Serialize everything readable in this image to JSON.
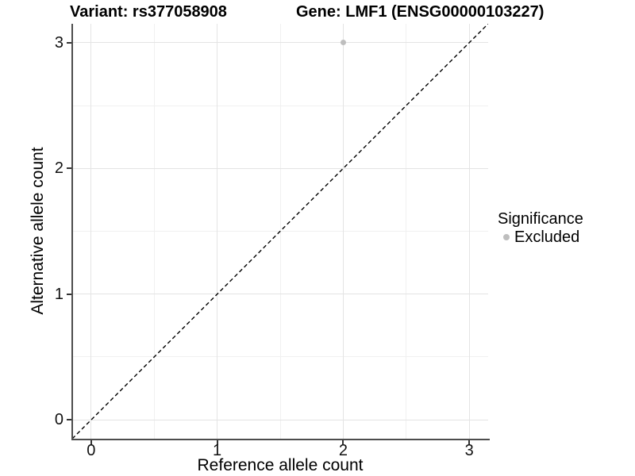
{
  "chart_data": {
    "type": "scatter",
    "titles": {
      "left": "Variant: rs377058908",
      "right": "Gene: LMF1 (ENSG00000103227)"
    },
    "xlabel": "Reference allele count",
    "ylabel": "Alternative allele count",
    "xlim": [
      -0.15,
      3.15
    ],
    "ylim": [
      -0.15,
      3.15
    ],
    "x_major_ticks": [
      0,
      1,
      2,
      3
    ],
    "y_major_ticks": [
      0,
      1,
      2,
      3
    ],
    "x_minor_ticks": [
      0.5,
      1.5,
      2.5
    ],
    "y_minor_ticks": [
      0.5,
      1.5,
      2.5
    ],
    "grid": "major+minor",
    "identity_line": {
      "style": "dashed",
      "color": "#000000",
      "x1": -0.15,
      "y1": -0.15,
      "x2": 3.15,
      "y2": 3.15
    },
    "series": [
      {
        "name": "Excluded",
        "marker": "circle",
        "color": "#bebebe",
        "points": [
          {
            "x": 2,
            "y": 3
          }
        ]
      }
    ],
    "legend": {
      "title": "Significance",
      "position": "right",
      "items": [
        {
          "label": "Excluded",
          "color": "#bebebe"
        }
      ]
    },
    "colors": {
      "grid_major": "#e4e4e4",
      "grid_minor": "#f0f0f0",
      "axis_line": "#4d4d4d",
      "tick_mark": "#333333",
      "text": "#000000"
    }
  }
}
